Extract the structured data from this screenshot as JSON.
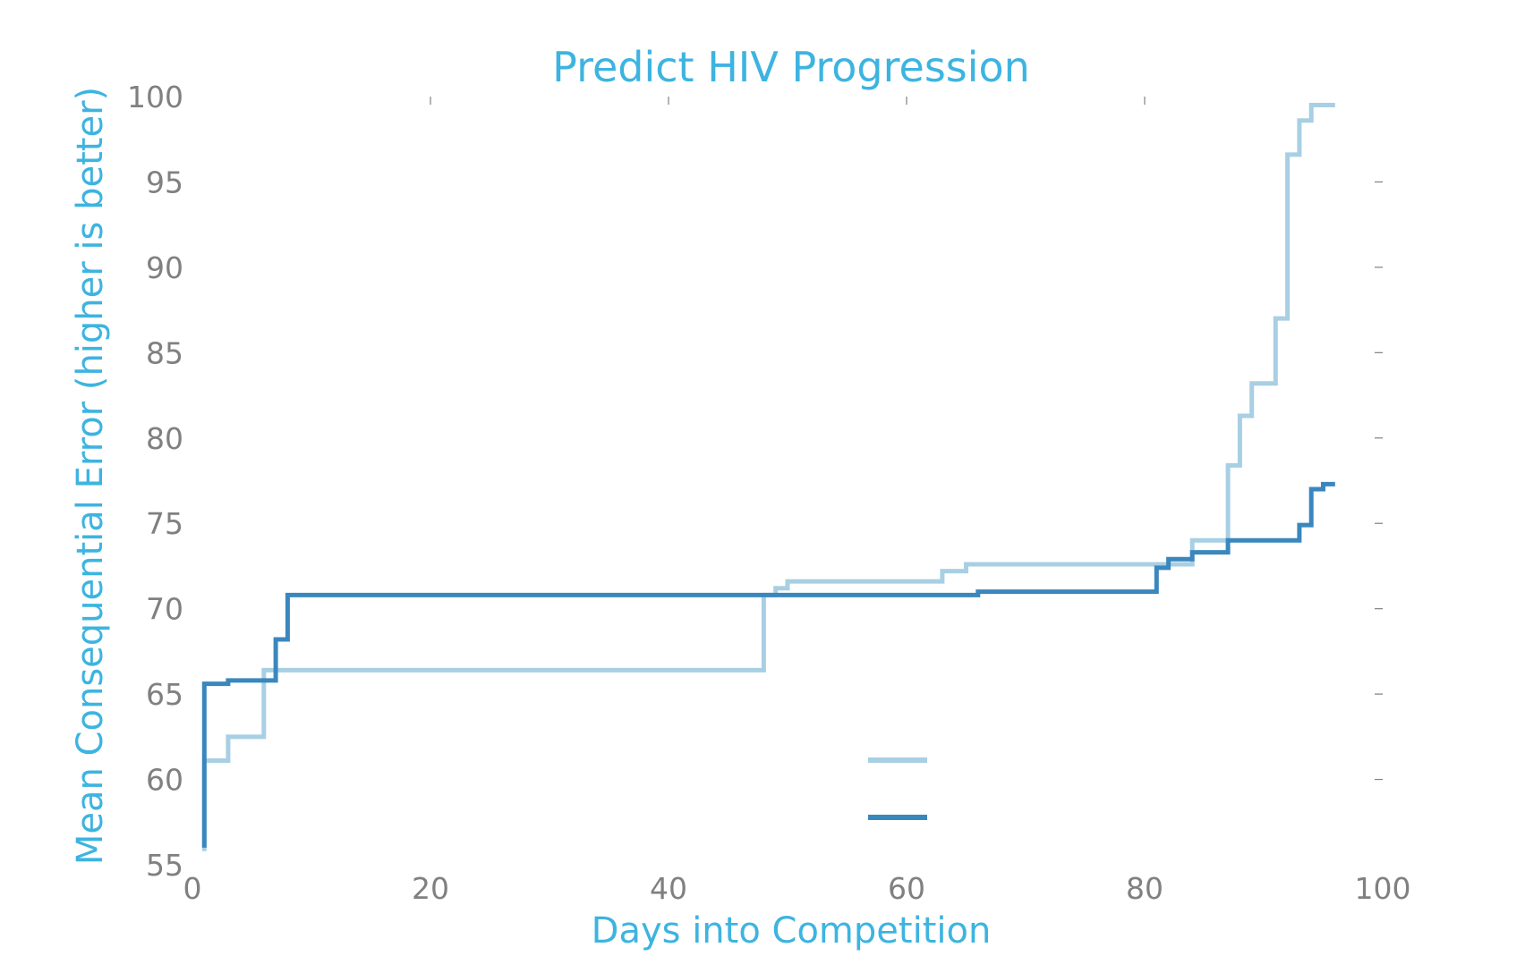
{
  "chart_data": {
    "type": "line",
    "step": true,
    "title": "Predict HIV Progression",
    "xlabel": "Days into Competition",
    "ylabel": "Mean Consequential Error (higher is better)",
    "xlim": [
      0,
      100
    ],
    "ylim": [
      55,
      100
    ],
    "xticks": [
      0,
      20,
      40,
      60,
      80,
      100
    ],
    "yticks": [
      55,
      60,
      65,
      70,
      75,
      80,
      85,
      90,
      95,
      100
    ],
    "grid": false,
    "legend": "bottom-center",
    "series": [
      {
        "color": "#a8cfe3",
        "x": [
          1,
          1,
          3,
          6,
          48,
          49,
          50,
          63,
          65,
          82,
          84,
          87,
          88,
          89,
          91,
          92,
          93,
          94,
          96
        ],
        "y": [
          55.8,
          61.1,
          62.5,
          66.4,
          70.8,
          71.2,
          71.6,
          72.2,
          72.6,
          72.6,
          74.0,
          78.4,
          81.3,
          83.2,
          87.0,
          96.6,
          98.6,
          99.5,
          99.5
        ]
      },
      {
        "color": "#3a87be",
        "x": [
          1,
          1,
          3,
          7,
          8,
          49,
          66,
          81,
          82,
          84,
          87,
          93,
          94,
          95,
          96
        ],
        "y": [
          56.0,
          65.6,
          65.8,
          68.2,
          70.8,
          70.8,
          71.0,
          72.4,
          72.9,
          73.3,
          74.0,
          74.9,
          77.0,
          77.3,
          77.3
        ]
      }
    ]
  }
}
